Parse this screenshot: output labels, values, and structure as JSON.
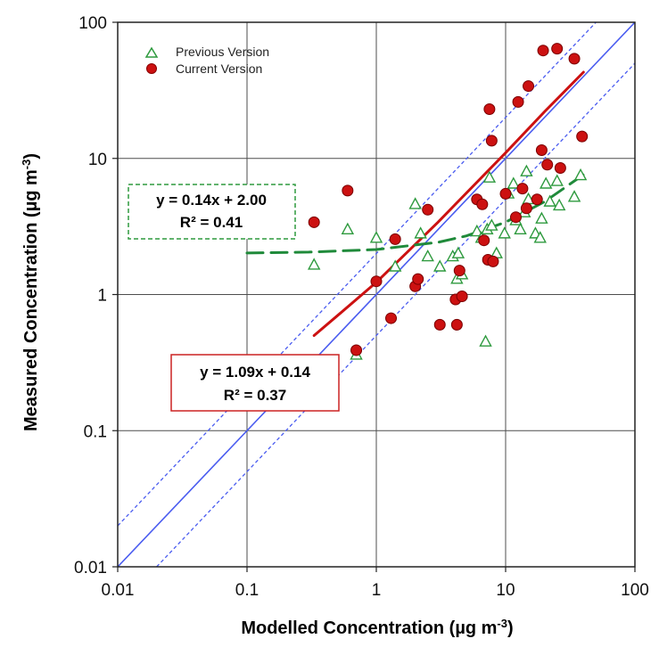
{
  "chart_data": {
    "type": "scatter",
    "x_scale": "log",
    "y_scale": "log",
    "xlim": [
      0.01,
      100
    ],
    "ylim": [
      0.01,
      100
    ],
    "xlabel": "Modelled Concentration (µg m",
    "xlabel_sup": "-3",
    "xlabel_close": ")",
    "ylabel": "Measured Concentration (µg m",
    "ylabel_sup": "-3",
    "ylabel_close": ")",
    "x_ticks": [
      0.01,
      0.1,
      1,
      10,
      100
    ],
    "x_tick_labels": [
      "0.01",
      "0.1",
      "1",
      "10",
      "100"
    ],
    "y_ticks": [
      0.01,
      0.1,
      1,
      10,
      100
    ],
    "y_tick_labels": [
      "0.01",
      "0.1",
      "1",
      "10",
      "100"
    ],
    "grid": true,
    "legend_position": "top-left",
    "series": [
      {
        "name": "Previous Version",
        "marker": "triangle-open",
        "color": "#2e9a3e",
        "points": [
          [
            0.33,
            1.65
          ],
          [
            0.6,
            3.0
          ],
          [
            0.7,
            0.36
          ],
          [
            1.0,
            2.6
          ],
          [
            1.4,
            1.6
          ],
          [
            2.0,
            4.6
          ],
          [
            2.2,
            2.8
          ],
          [
            2.5,
            1.9
          ],
          [
            3.1,
            1.6
          ],
          [
            3.9,
            1.9
          ],
          [
            4.3,
            2.0
          ],
          [
            4.2,
            1.3
          ],
          [
            4.6,
            1.4
          ],
          [
            6.0,
            2.9
          ],
          [
            6.5,
            2.6
          ],
          [
            7.0,
            0.45
          ],
          [
            7.2,
            3.0
          ],
          [
            7.5,
            7.2
          ],
          [
            7.8,
            3.2
          ],
          [
            8.5,
            2.0
          ],
          [
            9.8,
            2.8
          ],
          [
            10.5,
            5.5
          ],
          [
            11.5,
            6.5
          ],
          [
            12.0,
            3.5
          ],
          [
            13.0,
            3.0
          ],
          [
            14.0,
            4.0
          ],
          [
            14.5,
            8.0
          ],
          [
            15.0,
            5.0
          ],
          [
            17.0,
            2.8
          ],
          [
            18.5,
            2.6
          ],
          [
            19.0,
            3.6
          ],
          [
            20.5,
            6.5
          ],
          [
            22.0,
            4.8
          ],
          [
            25.0,
            6.8
          ],
          [
            26.0,
            4.5
          ],
          [
            34.0,
            5.2
          ],
          [
            38.0,
            7.5
          ]
        ]
      },
      {
        "name": "Current Version",
        "marker": "circle-filled",
        "color": "#cc1111",
        "points": [
          [
            0.33,
            3.4
          ],
          [
            0.6,
            5.8
          ],
          [
            0.7,
            0.39
          ],
          [
            1.0,
            1.25
          ],
          [
            1.3,
            0.67
          ],
          [
            1.4,
            2.55
          ],
          [
            2.0,
            1.15
          ],
          [
            2.1,
            1.3
          ],
          [
            2.5,
            4.2
          ],
          [
            3.1,
            0.6
          ],
          [
            4.1,
            0.92
          ],
          [
            4.2,
            0.6
          ],
          [
            4.4,
            1.5
          ],
          [
            4.6,
            0.97
          ],
          [
            6.0,
            5.0
          ],
          [
            6.6,
            4.6
          ],
          [
            6.8,
            2.5
          ],
          [
            7.3,
            1.8
          ],
          [
            7.5,
            23.0
          ],
          [
            7.8,
            13.5
          ],
          [
            8.0,
            1.75
          ],
          [
            10.0,
            5.5
          ],
          [
            12.0,
            3.7
          ],
          [
            12.5,
            26.0
          ],
          [
            13.5,
            6.0
          ],
          [
            14.5,
            4.3
          ],
          [
            15.0,
            34.0
          ],
          [
            17.5,
            5.0
          ],
          [
            19.0,
            11.5
          ],
          [
            19.5,
            62.0
          ],
          [
            21.0,
            9.0
          ],
          [
            25.0,
            64.0
          ],
          [
            26.5,
            8.5
          ],
          [
            34.0,
            54.0
          ],
          [
            39.0,
            14.5
          ]
        ]
      }
    ],
    "reference_lines": [
      {
        "role": "1:1",
        "x": [
          0.01,
          100
        ],
        "y": [
          0.01,
          100
        ],
        "style": "solid",
        "color": "#4a5cf0"
      },
      {
        "role": "factor 2 upper",
        "x": [
          0.01,
          50
        ],
        "y": [
          0.02,
          100
        ],
        "style": "dashed",
        "color": "#4a5cf0"
      },
      {
        "role": "factor 2 lower",
        "x": [
          0.02,
          100
        ],
        "y": [
          0.01,
          50
        ],
        "style": "dashed",
        "color": "#4a5cf0"
      }
    ],
    "fits": [
      {
        "series": "Current Version",
        "color": "#cc1111",
        "style": "solid",
        "curve": [
          [
            0.33,
            0.5
          ],
          [
            0.5,
            0.7
          ],
          [
            1,
            1.23
          ],
          [
            3,
            3.4
          ],
          [
            10,
            11.0
          ],
          [
            20,
            22
          ],
          [
            40,
            43
          ]
        ],
        "equation": "y = 1.09x + 0.14",
        "r2": "R² = 0.37"
      },
      {
        "series": "Previous Version",
        "color": "#1f8a3a",
        "style": "dashed",
        "curve": [
          [
            0.1,
            2.02
          ],
          [
            0.3,
            2.05
          ],
          [
            1,
            2.14
          ],
          [
            3,
            2.42
          ],
          [
            5,
            2.7
          ],
          [
            10,
            3.4
          ],
          [
            20,
            4.8
          ],
          [
            40,
            7.6
          ]
        ],
        "equation": "y = 0.14x + 2.00",
        "r2": "R² = 0.41"
      }
    ]
  }
}
